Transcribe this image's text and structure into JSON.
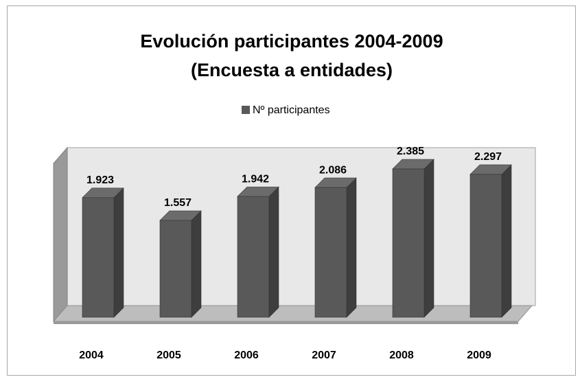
{
  "chart_data": {
    "type": "bar3d",
    "title": "Evolución participantes 2004-2009",
    "subtitle": "(Encuesta a entidades)",
    "categories": [
      "2004",
      "2005",
      "2006",
      "2007",
      "2008",
      "2009"
    ],
    "series": [
      {
        "name": "Nº participantes",
        "color": "#595959",
        "values": [
          1923,
          1557,
          1942,
          2086,
          2385,
          2297
        ],
        "value_labels": [
          "1.923",
          "1.557",
          "1.942",
          "2.086",
          "2.385",
          "2.297"
        ]
      }
    ],
    "legend": "top"
  }
}
